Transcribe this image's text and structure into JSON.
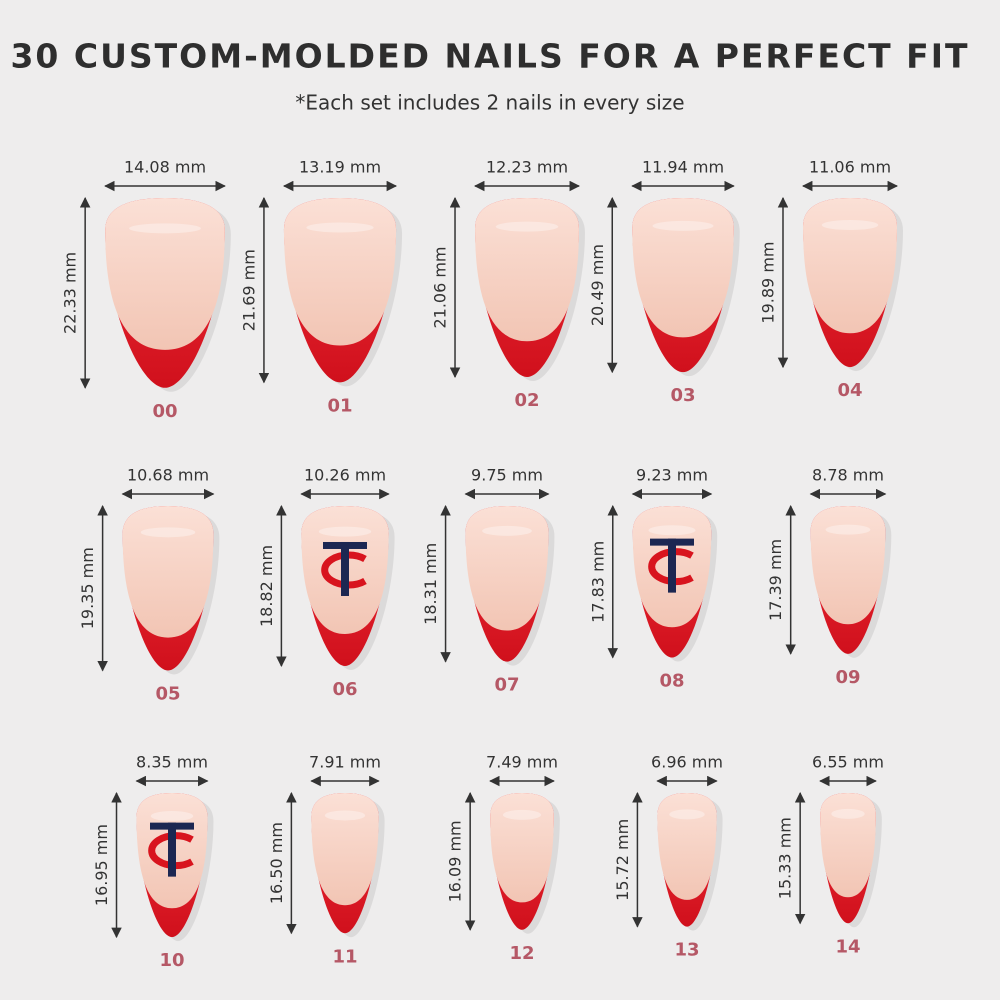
{
  "header": {
    "title": "30 CUSTOM-MOLDED NAILS FOR A PERFECT FIT",
    "subtitle": "*Each set includes 2 nails in every size"
  },
  "nails": [
    {
      "size": "00",
      "width": "14.08 mm",
      "height": "22.33 mm"
    },
    {
      "size": "01",
      "width": "13.19 mm",
      "height": "21.69 mm"
    },
    {
      "size": "02",
      "width": "12.23 mm",
      "height": "21.06 mm"
    },
    {
      "size": "03",
      "width": "11.94 mm",
      "height": "20.49 mm"
    },
    {
      "size": "04",
      "width": "11.06 mm",
      "height": "19.89 mm"
    },
    {
      "size": "05",
      "width": "10.68 mm",
      "height": "19.35 mm"
    },
    {
      "size": "06",
      "width": "10.26 mm",
      "height": "18.82 mm",
      "logo": true
    },
    {
      "size": "07",
      "width": "9.75 mm",
      "height": "18.31 mm"
    },
    {
      "size": "08",
      "width": "9.23 mm",
      "height": "17.83 mm",
      "logo": true
    },
    {
      "size": "09",
      "width": "8.78 mm",
      "height": "17.39 mm"
    },
    {
      "size": "10",
      "width": "8.35 mm",
      "height": "16.95 mm",
      "logo": true
    },
    {
      "size": "11",
      "width": "7.91 mm",
      "height": "16.50 mm"
    },
    {
      "size": "12",
      "width": "7.49 mm",
      "height": "16.09 mm"
    },
    {
      "size": "13",
      "width": "6.96 mm",
      "height": "15.72 mm"
    },
    {
      "size": "14",
      "width": "6.55 mm",
      "height": "15.33 mm"
    }
  ]
}
